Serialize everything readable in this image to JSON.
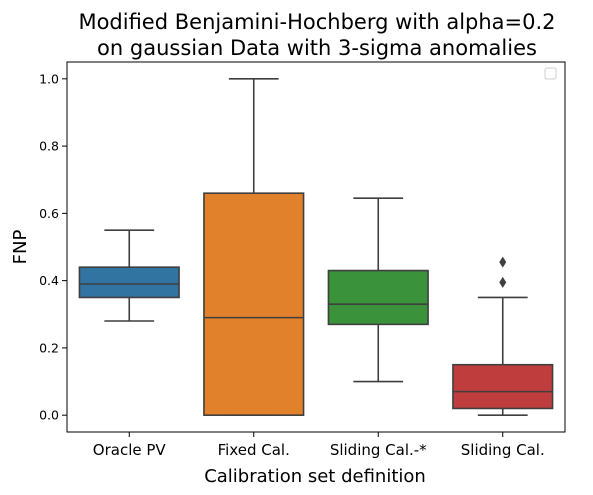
{
  "chart_data": {
    "type": "box",
    "title_line1": "Modified Benjamini-Hochberg with alpha=0.2",
    "title_line2": "on gaussian Data with 3-sigma anomalies",
    "xlabel": "Calibration set definition",
    "ylabel": "FNP",
    "ylim": [
      -0.05,
      1.05
    ],
    "yticks": [
      "0.0",
      "0.2",
      "0.4",
      "0.6",
      "0.8",
      "1.0"
    ],
    "legend": "top-right (empty)",
    "grid": false,
    "categories": [
      "Oracle PV",
      "Fixed Cal.",
      "Sliding Cal.-*",
      "Sliding Cal."
    ],
    "boxes": [
      {
        "name": "Oracle PV",
        "whisker_low": 0.28,
        "q1": 0.35,
        "median": 0.39,
        "q3": 0.44,
        "whisker_high": 0.55,
        "outliers": [],
        "color": "#3274a1"
      },
      {
        "name": "Fixed Cal.",
        "whisker_low": 0.0,
        "q1": 0.0,
        "median": 0.29,
        "q3": 0.66,
        "whisker_high": 1.0,
        "outliers": [],
        "color": "#e1812c"
      },
      {
        "name": "Sliding Cal.-*",
        "whisker_low": 0.1,
        "q1": 0.27,
        "median": 0.33,
        "q3": 0.43,
        "whisker_high": 0.645,
        "outliers": [],
        "color": "#3a923a"
      },
      {
        "name": "Sliding Cal.",
        "whisker_low": 0.0,
        "q1": 0.02,
        "median": 0.07,
        "q3": 0.15,
        "whisker_high": 0.35,
        "outliers": [
          0.395,
          0.455
        ],
        "color": "#c03d3e"
      }
    ]
  }
}
